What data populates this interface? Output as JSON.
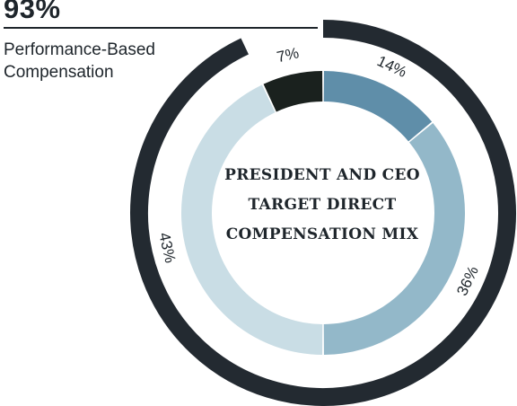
{
  "callout": {
    "value": "93%",
    "label_line1": "Performance-Based",
    "label_line2": "Compensation",
    "color": "#1e252b"
  },
  "chart_data": {
    "type": "pie",
    "title_lines": [
      "PRESIDENT AND CEO",
      "TARGET DIRECT",
      "COMPENSATION MIX"
    ],
    "slices": [
      {
        "label": "14%",
        "value": 14,
        "color": "#5f8ea9"
      },
      {
        "label": "36%",
        "value": 36,
        "color": "#93b8c9"
      },
      {
        "label": "43%",
        "value": 43,
        "color": "#c9dde5"
      },
      {
        "label": "7%",
        "value": 7,
        "color": "#1a211e"
      }
    ],
    "outer_ring": {
      "value": 93,
      "color": "#232a31"
    }
  }
}
